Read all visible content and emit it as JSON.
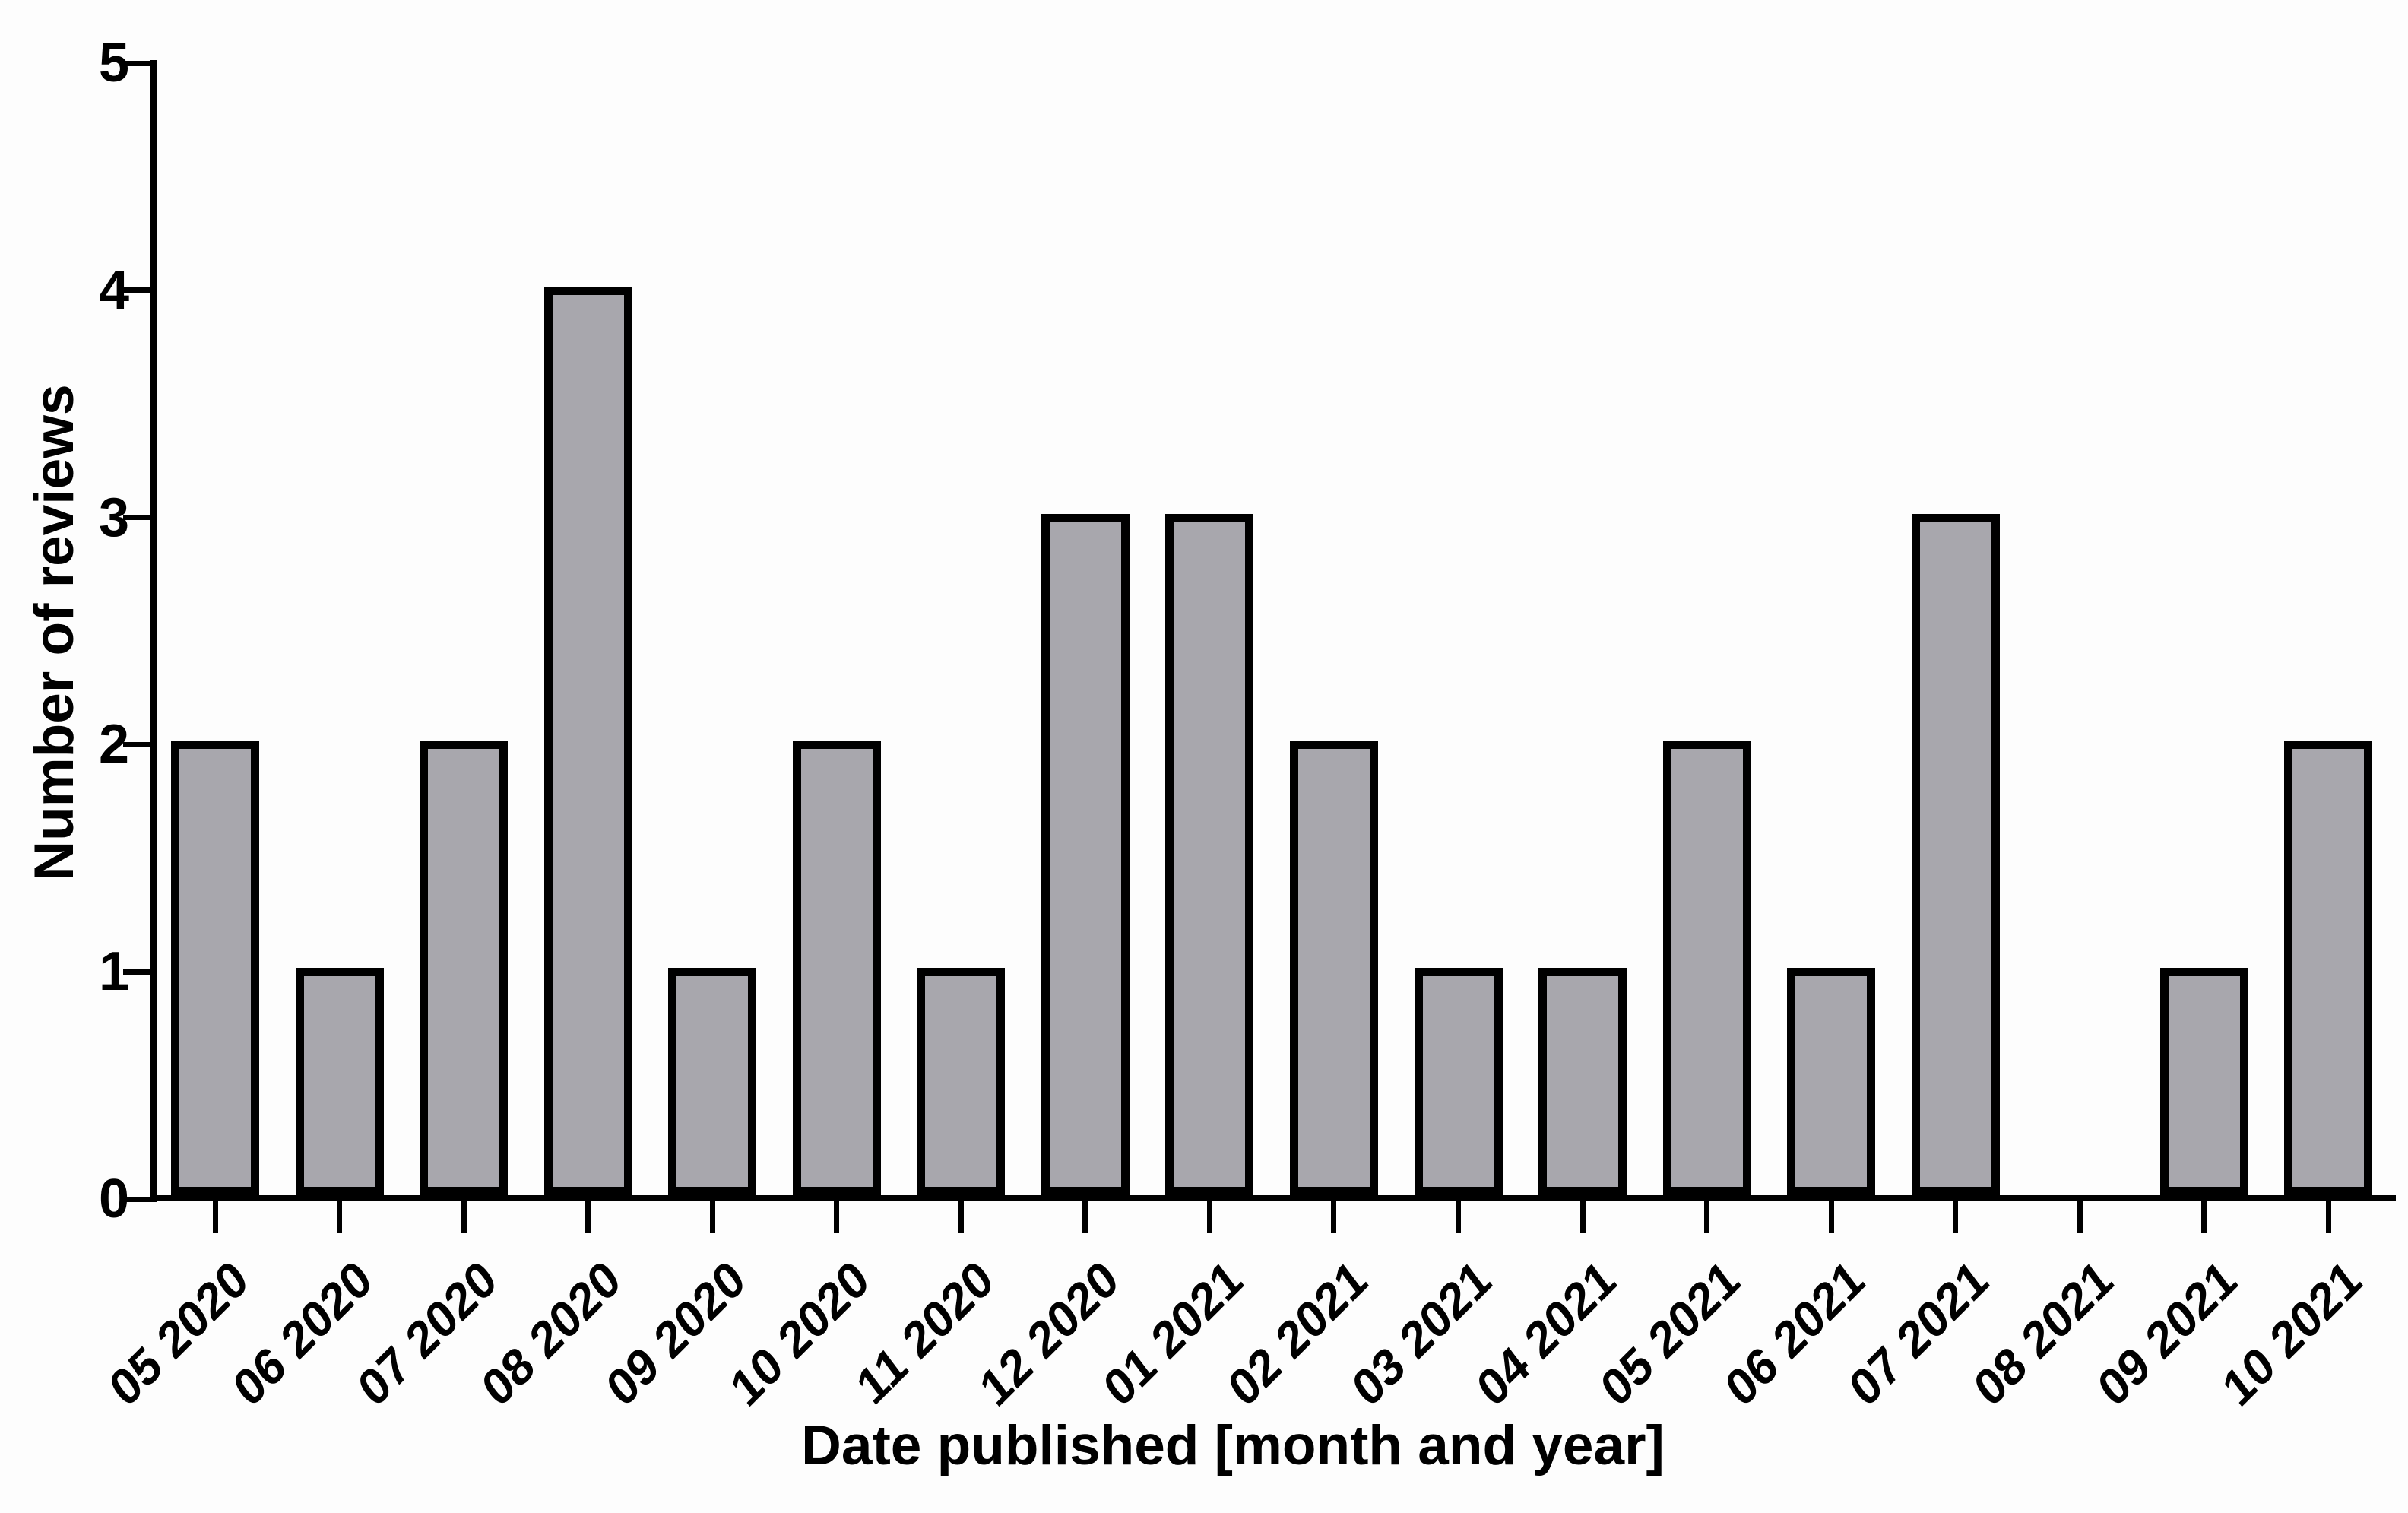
{
  "chart_data": {
    "type": "bar",
    "title": "",
    "xlabel": "Date published [month and year]",
    "ylabel": "Number of reviews",
    "categories": [
      "05 2020",
      "06 2020",
      "07 2020",
      "08 2020",
      "09 2020",
      "10 2020",
      "11 2020",
      "12 2020",
      "01 2021",
      "02 2021",
      "03 2021",
      "04 2021",
      "05 2021",
      "06 2021",
      "07 2021",
      "08 2021",
      "09 2021",
      "10 2021"
    ],
    "values": [
      2,
      1,
      2,
      4,
      1,
      2,
      1,
      3,
      3,
      2,
      1,
      1,
      2,
      1,
      3,
      0,
      1,
      2
    ],
    "ylim": [
      0,
      5
    ],
    "yticks": [
      0,
      1,
      2,
      3,
      4,
      5
    ],
    "grid": false,
    "legend": null,
    "x_tick_label_rotation_deg": -45,
    "colors": {
      "bar_fill": "#a8a7ad",
      "bar_border": "#000000",
      "axis": "#000000",
      "text": "#000000",
      "background": "#fdfdfd"
    }
  }
}
